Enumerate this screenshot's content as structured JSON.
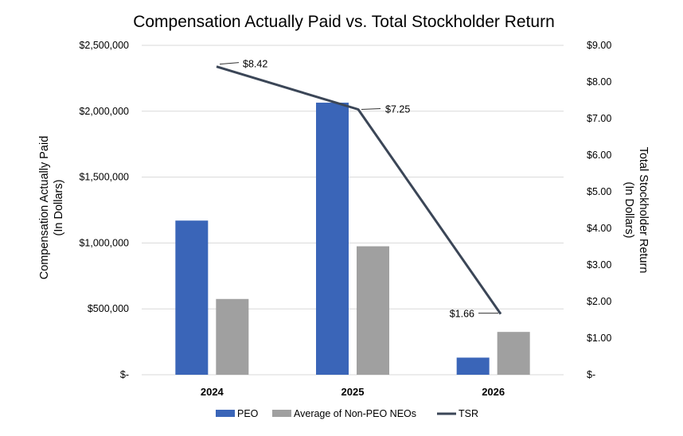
{
  "chart_data": {
    "type": "bar",
    "title": "Compensation Actually Paid vs. Total Stockholder Return",
    "ylabel": [
      "Compensation Actually Paid",
      "(In Dollars)"
    ],
    "y2label": [
      "Total Stockholder Return",
      "(In Dollars)"
    ],
    "categories": [
      "2024",
      "2025",
      "2026"
    ],
    "ylim": [
      0,
      2500000
    ],
    "y2lim": [
      0,
      9
    ],
    "y_ticks": [
      "$-",
      "$500,000",
      "$1,000,000",
      "$1,500,000",
      "$2,000,000",
      "$2,500,000"
    ],
    "y2_ticks": [
      "$-",
      "$1.00",
      "$2.00",
      "$3.00",
      "$4.00",
      "$5.00",
      "$6.00",
      "$7.00",
      "$8.00",
      "$9.00"
    ],
    "grid": true,
    "legend_position": "bottom",
    "series": [
      {
        "name": "PEO",
        "kind": "bar",
        "axis": "left",
        "color": "#3a65b8",
        "values": [
          1170000,
          2065000,
          130000
        ]
      },
      {
        "name": "Average of Non-PEO NEOs",
        "kind": "bar",
        "axis": "left",
        "color": "#a0a0a0",
        "values": [
          575000,
          975000,
          325000
        ]
      },
      {
        "name": "TSR",
        "kind": "line",
        "axis": "right",
        "color": "#3b4657",
        "values": [
          8.42,
          7.25,
          1.66
        ],
        "labels": [
          "$8.42",
          "$7.25",
          "$1.66"
        ]
      }
    ]
  }
}
